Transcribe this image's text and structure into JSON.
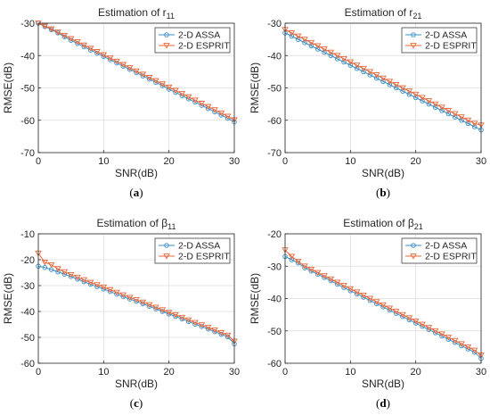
{
  "chart_data": [
    {
      "type": "line",
      "title": "Estimation of r",
      "title_sub": "11",
      "xlabel": "SNR(dB)",
      "ylabel": "RMSE(dB)",
      "xlim": [
        0,
        30
      ],
      "ylim": [
        -70,
        -30
      ],
      "xticks": [
        0,
        10,
        20,
        30
      ],
      "yticks": [
        -70,
        -60,
        -50,
        -40,
        -30
      ],
      "grid": true,
      "legend_position": "top-right",
      "caption": "a",
      "series": [
        {
          "name": "2-D ASSA",
          "color": "#3b8fc5",
          "marker": "circle",
          "x": [
            0,
            1,
            2,
            3,
            4,
            5,
            6,
            7,
            8,
            9,
            10,
            11,
            12,
            13,
            14,
            15,
            16,
            17,
            18,
            19,
            20,
            21,
            22,
            23,
            24,
            25,
            26,
            27,
            28,
            29,
            30
          ],
          "y": [
            -30,
            -31,
            -32,
            -33,
            -34.2,
            -35.3,
            -36.3,
            -37.3,
            -38.3,
            -39.3,
            -40.3,
            -41.3,
            -42.3,
            -43.3,
            -44.3,
            -45.3,
            -46.3,
            -47.3,
            -48.3,
            -49.3,
            -50.4,
            -51.4,
            -52.4,
            -53.4,
            -54.4,
            -55.4,
            -56.4,
            -57.4,
            -58.4,
            -59.4,
            -60.5
          ]
        },
        {
          "name": "2-D ESPRIT",
          "color": "#e8673a",
          "marker": "triangle-down",
          "x": [
            0,
            1,
            2,
            3,
            4,
            5,
            6,
            7,
            8,
            9,
            10,
            11,
            12,
            13,
            14,
            15,
            16,
            17,
            18,
            19,
            20,
            21,
            22,
            23,
            24,
            25,
            26,
            27,
            28,
            29,
            30
          ],
          "y": [
            -30,
            -30.9,
            -31.8,
            -32.8,
            -33.8,
            -34.8,
            -35.8,
            -36.8,
            -37.8,
            -38.8,
            -39.8,
            -40.8,
            -41.8,
            -42.8,
            -43.8,
            -44.8,
            -45.8,
            -46.8,
            -47.8,
            -48.8,
            -49.8,
            -50.8,
            -51.8,
            -52.8,
            -53.8,
            -54.8,
            -55.8,
            -56.8,
            -57.8,
            -58.8,
            -59.9
          ]
        }
      ]
    },
    {
      "type": "line",
      "title": "Estimation of r",
      "title_sub": "21",
      "xlabel": "SNR(dB)",
      "ylabel": "RMSE(dB)",
      "xlim": [
        0,
        30
      ],
      "ylim": [
        -70,
        -30
      ],
      "xticks": [
        0,
        10,
        20,
        30
      ],
      "yticks": [
        -70,
        -60,
        -50,
        -40,
        -30
      ],
      "grid": true,
      "legend_position": "top-right",
      "caption": "b",
      "series": [
        {
          "name": "2-D ASSA",
          "color": "#3b8fc5",
          "marker": "circle",
          "x": [
            0,
            1,
            2,
            3,
            4,
            5,
            6,
            7,
            8,
            9,
            10,
            11,
            12,
            13,
            14,
            15,
            16,
            17,
            18,
            19,
            20,
            21,
            22,
            23,
            24,
            25,
            26,
            27,
            28,
            29,
            30
          ],
          "y": [
            -33,
            -34,
            -35,
            -36,
            -37,
            -38,
            -39,
            -40,
            -41,
            -42,
            -43,
            -44,
            -45,
            -46,
            -47,
            -48,
            -49,
            -50,
            -51,
            -52,
            -53,
            -54,
            -55,
            -56,
            -57,
            -58,
            -59,
            -60,
            -61,
            -62,
            -63
          ]
        },
        {
          "name": "2-D ESPRIT",
          "color": "#e8673a",
          "marker": "triangle-down",
          "x": [
            0,
            1,
            2,
            3,
            4,
            5,
            6,
            7,
            8,
            9,
            10,
            11,
            12,
            13,
            14,
            15,
            16,
            17,
            18,
            19,
            20,
            21,
            22,
            23,
            24,
            25,
            26,
            27,
            28,
            29,
            30
          ],
          "y": [
            -32,
            -33,
            -34,
            -35,
            -36,
            -37,
            -38,
            -39,
            -40,
            -41,
            -42,
            -43,
            -44,
            -45,
            -46,
            -47,
            -48,
            -49,
            -50,
            -51,
            -52,
            -53,
            -54,
            -55,
            -56,
            -57,
            -58,
            -59,
            -60,
            -61,
            -61.5
          ]
        }
      ]
    },
    {
      "type": "line",
      "title": "Estimation of β",
      "title_sub": "11",
      "xlabel": "SNR(dB)",
      "ylabel": "RMSE(dB)",
      "xlim": [
        0,
        30
      ],
      "ylim": [
        -60,
        -10
      ],
      "xticks": [
        0,
        10,
        20,
        30
      ],
      "yticks": [
        -60,
        -50,
        -40,
        -30,
        -20,
        -10
      ],
      "grid": true,
      "legend_position": "top-right",
      "caption": "c",
      "series": [
        {
          "name": "2-D ASSA",
          "color": "#3b8fc5",
          "marker": "circle",
          "x": [
            0,
            1,
            2,
            3,
            4,
            5,
            6,
            7,
            8,
            9,
            10,
            11,
            12,
            13,
            14,
            15,
            16,
            17,
            18,
            19,
            20,
            21,
            22,
            23,
            24,
            25,
            26,
            27,
            28,
            29,
            30
          ],
          "y": [
            -22.5,
            -23,
            -23.8,
            -24.7,
            -25.6,
            -26.5,
            -27.5,
            -28.5,
            -29.5,
            -30.4,
            -31.3,
            -32.3,
            -33.3,
            -34.3,
            -35.2,
            -36.1,
            -37,
            -38,
            -39,
            -40,
            -41,
            -41.9,
            -42.9,
            -43.9,
            -44.9,
            -45.8,
            -46.8,
            -47.8,
            -48.8,
            -49.8,
            -52.5
          ]
        },
        {
          "name": "2-D ESPRIT",
          "color": "#e8673a",
          "marker": "triangle-down",
          "x": [
            0,
            1,
            2,
            3,
            4,
            5,
            6,
            7,
            8,
            9,
            10,
            11,
            12,
            13,
            14,
            15,
            16,
            17,
            18,
            19,
            20,
            21,
            22,
            23,
            24,
            25,
            26,
            27,
            28,
            29,
            30
          ],
          "y": [
            -17.5,
            -21,
            -22,
            -23.5,
            -24.7,
            -25.8,
            -26.8,
            -27.8,
            -28.8,
            -29.7,
            -30.6,
            -31.6,
            -32.6,
            -33.6,
            -34.6,
            -35.5,
            -36.4,
            -37.4,
            -38.4,
            -39.4,
            -40.4,
            -41.3,
            -42.3,
            -43.3,
            -44.3,
            -45.2,
            -46.2,
            -47.2,
            -48.2,
            -49.2,
            -51.5
          ]
        }
      ]
    },
    {
      "type": "line",
      "title": "Estimation of β",
      "title_sub": "21",
      "xlabel": "SNR(dB)",
      "ylabel": "RMSE(dB)",
      "xlim": [
        0,
        30
      ],
      "ylim": [
        -60,
        -20
      ],
      "xticks": [
        0,
        10,
        20,
        30
      ],
      "yticks": [
        -60,
        -50,
        -40,
        -30,
        -20
      ],
      "grid": true,
      "legend_position": "top-right",
      "caption": "d",
      "series": [
        {
          "name": "2-D ASSA",
          "color": "#3b8fc5",
          "marker": "circle",
          "x": [
            0,
            1,
            2,
            3,
            4,
            5,
            6,
            7,
            8,
            9,
            10,
            11,
            12,
            13,
            14,
            15,
            16,
            17,
            18,
            19,
            20,
            21,
            22,
            23,
            24,
            25,
            26,
            27,
            28,
            29,
            30
          ],
          "y": [
            -27,
            -28,
            -29,
            -30.5,
            -31.5,
            -32.5,
            -33.5,
            -34.5,
            -35.6,
            -36.6,
            -37.6,
            -38.6,
            -39.6,
            -40.6,
            -41.6,
            -42.6,
            -43.6,
            -44.6,
            -45.6,
            -46.6,
            -47.6,
            -48.6,
            -49.6,
            -50.6,
            -51.6,
            -52.6,
            -53.6,
            -54.6,
            -55.6,
            -56.6,
            -58.5
          ]
        },
        {
          "name": "2-D ESPRIT",
          "color": "#e8673a",
          "marker": "triangle-down",
          "x": [
            0,
            1,
            2,
            3,
            4,
            5,
            6,
            7,
            8,
            9,
            10,
            11,
            12,
            13,
            14,
            15,
            16,
            17,
            18,
            19,
            20,
            21,
            22,
            23,
            24,
            25,
            26,
            27,
            28,
            29,
            30
          ],
          "y": [
            -25,
            -27,
            -28.5,
            -30,
            -31,
            -32,
            -33,
            -34,
            -35,
            -36,
            -37,
            -38,
            -39,
            -40,
            -41,
            -42,
            -43,
            -44,
            -45,
            -46,
            -47,
            -48,
            -49,
            -50,
            -51,
            -52,
            -53,
            -54,
            -55,
            -56,
            -57.5
          ]
        }
      ]
    }
  ]
}
